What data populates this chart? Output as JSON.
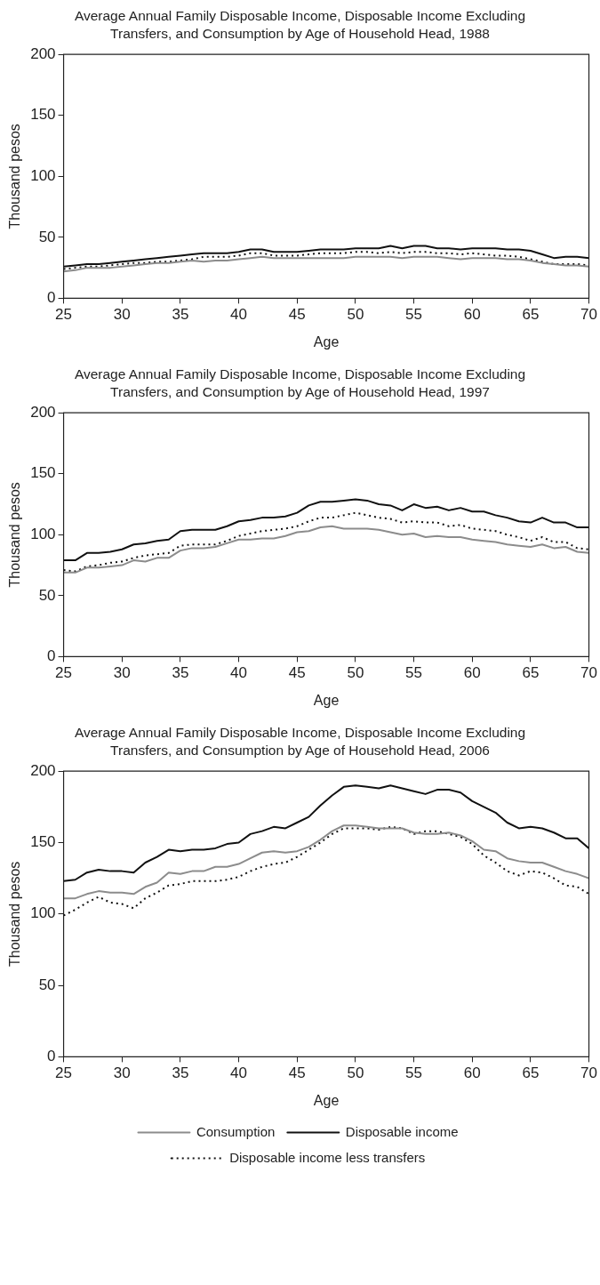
{
  "chart_data": [
    {
      "type": "line",
      "title": "Average Annual Family Disposable Income, Disposable Income Excluding Transfers, and Consumption by Age of Household Head, 1988",
      "xlabel": "Age",
      "ylabel": "Thousand pesos",
      "xlim": [
        25,
        70
      ],
      "xticks": [
        25,
        30,
        35,
        40,
        45,
        50,
        55,
        60,
        65,
        70
      ],
      "ylim": [
        0,
        200
      ],
      "yticks": [
        0,
        50,
        100,
        150,
        200
      ],
      "grid": false,
      "legend": false,
      "marker": "none",
      "x": [
        25,
        26,
        27,
        28,
        29,
        30,
        31,
        32,
        33,
        34,
        35,
        36,
        37,
        38,
        39,
        40,
        41,
        42,
        43,
        44,
        45,
        46,
        47,
        48,
        49,
        50,
        51,
        52,
        53,
        54,
        55,
        56,
        57,
        58,
        59,
        60,
        61,
        62,
        63,
        64,
        65,
        66,
        67,
        68,
        69,
        70
      ],
      "series": [
        {
          "color": "#8c8c8c",
          "line_style": "solid",
          "values": [
            22,
            23,
            25,
            25,
            25,
            26,
            27,
            28,
            29,
            29,
            30,
            31,
            30,
            31,
            31,
            32,
            33,
            34,
            33,
            33,
            33,
            33,
            33,
            33,
            33,
            34,
            34,
            34,
            34,
            33,
            34,
            34,
            34,
            33,
            32,
            33,
            33,
            33,
            32,
            32,
            31,
            29,
            28,
            27,
            27,
            26
          ]
        },
        {
          "color": "#111111",
          "line_style": "solid",
          "values": [
            26,
            27,
            28,
            28,
            29,
            30,
            31,
            32,
            33,
            34,
            35,
            36,
            37,
            37,
            37,
            38,
            40,
            40,
            38,
            38,
            38,
            39,
            40,
            40,
            40,
            41,
            41,
            41,
            43,
            41,
            43,
            43,
            41,
            41,
            40,
            41,
            41,
            41,
            40,
            40,
            39,
            36,
            33,
            34,
            34,
            33
          ]
        },
        {
          "color": "#111111",
          "line_style": "dotted",
          "values": [
            24,
            25,
            26,
            26,
            27,
            28,
            29,
            29,
            30,
            30,
            31,
            32,
            34,
            34,
            34,
            35,
            37,
            37,
            35,
            35,
            35,
            36,
            37,
            37,
            37,
            38,
            38,
            37,
            38,
            37,
            38,
            38,
            37,
            37,
            36,
            37,
            36,
            35,
            35,
            34,
            32,
            30,
            28,
            28,
            28,
            27
          ]
        }
      ]
    },
    {
      "type": "line",
      "title": "Average Annual Family Disposable Income, Disposable Income Excluding Transfers, and Consumption by Age of Household Head, 1997",
      "xlabel": "Age",
      "ylabel": "Thousand pesos",
      "xlim": [
        25,
        70
      ],
      "xticks": [
        25,
        30,
        35,
        40,
        45,
        50,
        55,
        60,
        65,
        70
      ],
      "ylim": [
        0,
        200
      ],
      "yticks": [
        0,
        50,
        100,
        150,
        200
      ],
      "grid": false,
      "legend": false,
      "marker": "none",
      "x": [
        25,
        26,
        27,
        28,
        29,
        30,
        31,
        32,
        33,
        34,
        35,
        36,
        37,
        38,
        39,
        40,
        41,
        42,
        43,
        44,
        45,
        46,
        47,
        48,
        49,
        50,
        51,
        52,
        53,
        54,
        55,
        56,
        57,
        58,
        59,
        60,
        61,
        62,
        63,
        64,
        65,
        66,
        67,
        68,
        69,
        70
      ],
      "series": [
        {
          "color": "#8c8c8c",
          "line_style": "solid",
          "values": [
            69,
            69,
            73,
            73,
            74,
            75,
            79,
            78,
            81,
            81,
            87,
            89,
            89,
            90,
            93,
            96,
            96,
            97,
            97,
            99,
            102,
            103,
            106,
            107,
            105,
            105,
            105,
            104,
            102,
            100,
            101,
            98,
            99,
            98,
            98,
            96,
            95,
            94,
            92,
            91,
            90,
            92,
            89,
            90,
            86,
            85
          ]
        },
        {
          "color": "#111111",
          "line_style": "solid",
          "values": [
            79,
            79,
            85,
            85,
            86,
            88,
            92,
            93,
            95,
            96,
            103,
            104,
            104,
            104,
            107,
            111,
            112,
            114,
            114,
            115,
            118,
            124,
            127,
            127,
            128,
            129,
            128,
            125,
            124,
            120,
            125,
            122,
            123,
            120,
            122,
            119,
            119,
            116,
            114,
            111,
            110,
            114,
            110,
            110,
            106,
            106
          ]
        },
        {
          "color": "#111111",
          "line_style": "dotted",
          "values": [
            71,
            70,
            74,
            75,
            77,
            78,
            81,
            83,
            84,
            85,
            91,
            92,
            92,
            92,
            95,
            99,
            101,
            103,
            104,
            105,
            107,
            111,
            114,
            114,
            116,
            118,
            116,
            114,
            113,
            110,
            111,
            110,
            110,
            107,
            108,
            105,
            104,
            103,
            100,
            98,
            95,
            98,
            94,
            94,
            89,
            88
          ]
        }
      ]
    },
    {
      "type": "line",
      "title": "Average Annual Family Disposable Income, Disposable Income Excluding Transfers, and Consumption by Age of Household Head, 2006",
      "xlabel": "Age",
      "ylabel": "Thousand pesos",
      "xlim": [
        25,
        70
      ],
      "xticks": [
        25,
        30,
        35,
        40,
        45,
        50,
        55,
        60,
        65,
        70
      ],
      "ylim": [
        0,
        200
      ],
      "yticks": [
        0,
        50,
        100,
        150,
        200
      ],
      "grid": false,
      "legend": "bottom",
      "marker": "none",
      "x": [
        25,
        26,
        27,
        28,
        29,
        30,
        31,
        32,
        33,
        34,
        35,
        36,
        37,
        38,
        39,
        40,
        41,
        42,
        43,
        44,
        45,
        46,
        47,
        48,
        49,
        50,
        51,
        52,
        53,
        54,
        55,
        56,
        57,
        58,
        59,
        60,
        61,
        62,
        63,
        64,
        65,
        66,
        67,
        68,
        69,
        70
      ],
      "series": [
        {
          "name": "Consumption",
          "color": "#8c8c8c",
          "line_style": "solid",
          "values": [
            111,
            111,
            114,
            116,
            115,
            115,
            114,
            119,
            122,
            129,
            128,
            130,
            130,
            133,
            133,
            135,
            139,
            143,
            144,
            143,
            144,
            147,
            152,
            158,
            162,
            162,
            161,
            160,
            160,
            160,
            157,
            156,
            156,
            157,
            155,
            151,
            145,
            144,
            139,
            137,
            136,
            136,
            133,
            130,
            128,
            125
          ]
        },
        {
          "name": "Disposable income",
          "color": "#111111",
          "line_style": "solid",
          "values": [
            123,
            124,
            129,
            131,
            130,
            130,
            129,
            136,
            140,
            145,
            144,
            145,
            145,
            146,
            149,
            150,
            156,
            158,
            161,
            160,
            164,
            168,
            176,
            183,
            189,
            190,
            189,
            188,
            190,
            188,
            186,
            184,
            187,
            187,
            185,
            179,
            175,
            171,
            164,
            160,
            161,
            160,
            157,
            153,
            153,
            146
          ]
        },
        {
          "name": "Disposable income less transfers",
          "color": "#111111",
          "line_style": "dotted",
          "values": [
            99,
            103,
            108,
            112,
            108,
            107,
            104,
            111,
            115,
            120,
            121,
            123,
            123,
            123,
            124,
            126,
            130,
            133,
            135,
            136,
            140,
            145,
            150,
            156,
            160,
            160,
            160,
            159,
            161,
            160,
            156,
            158,
            158,
            156,
            154,
            149,
            141,
            136,
            130,
            127,
            130,
            129,
            125,
            120,
            119,
            114
          ]
        }
      ]
    }
  ]
}
